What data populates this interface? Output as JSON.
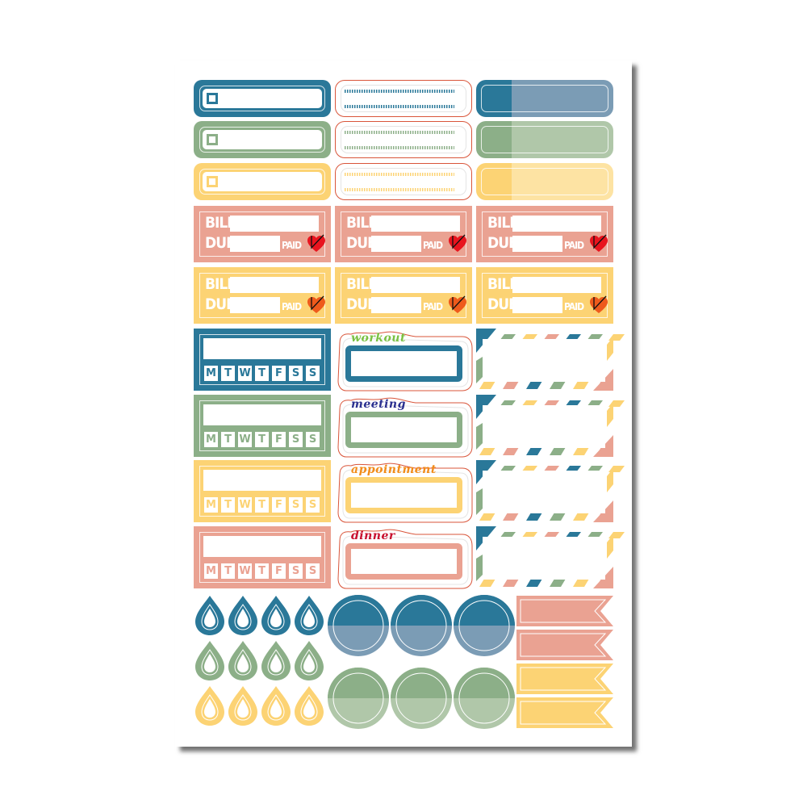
{
  "colors": {
    "blue": "#2a7899",
    "blue_light": "#7b9cb5",
    "green": "#8caf88",
    "green_light": "#b0c7a9",
    "yellow": "#fcd374",
    "yellow_light": "#fde3a3",
    "pink": "#eaa292",
    "outline_red": "#d9553a",
    "heart_red": "#e8141e",
    "heart_orange": "#ee5a1c"
  },
  "bill": {
    "bill_label": "BILL",
    "due_label": "DUE",
    "paid_label": "PAID",
    "icon": "heart-check-icon"
  },
  "weekly": {
    "days": [
      "M",
      "T",
      "W",
      "T",
      "F",
      "S",
      "S"
    ]
  },
  "event_labels": [
    {
      "text": "workout",
      "text_color": "#7ac142",
      "box_color": "#2a7899"
    },
    {
      "text": "meeting",
      "text_color": "#2a2f8f",
      "box_color": "#8caf88"
    },
    {
      "text": "appointment",
      "text_color": "#f28c1a",
      "box_color": "#fcd374"
    },
    {
      "text": "dinner",
      "text_color": "#c8102e",
      "box_color": "#eaa292"
    }
  ],
  "checkbox_labels": [
    "blue",
    "green",
    "yellow"
  ],
  "dotted_labels": [
    "blue",
    "green",
    "yellow"
  ],
  "split_labels": [
    "blue",
    "green",
    "yellow"
  ],
  "bill_rows": [
    "pink",
    "yellow"
  ],
  "weekly_rows": [
    "blue",
    "green",
    "yellow",
    "pink"
  ],
  "drop_rows": [
    "blue",
    "green",
    "yellow"
  ],
  "circle_rows": [
    "blue",
    "green"
  ],
  "banners": [
    "pink",
    "pink",
    "yellow",
    "yellow"
  ]
}
